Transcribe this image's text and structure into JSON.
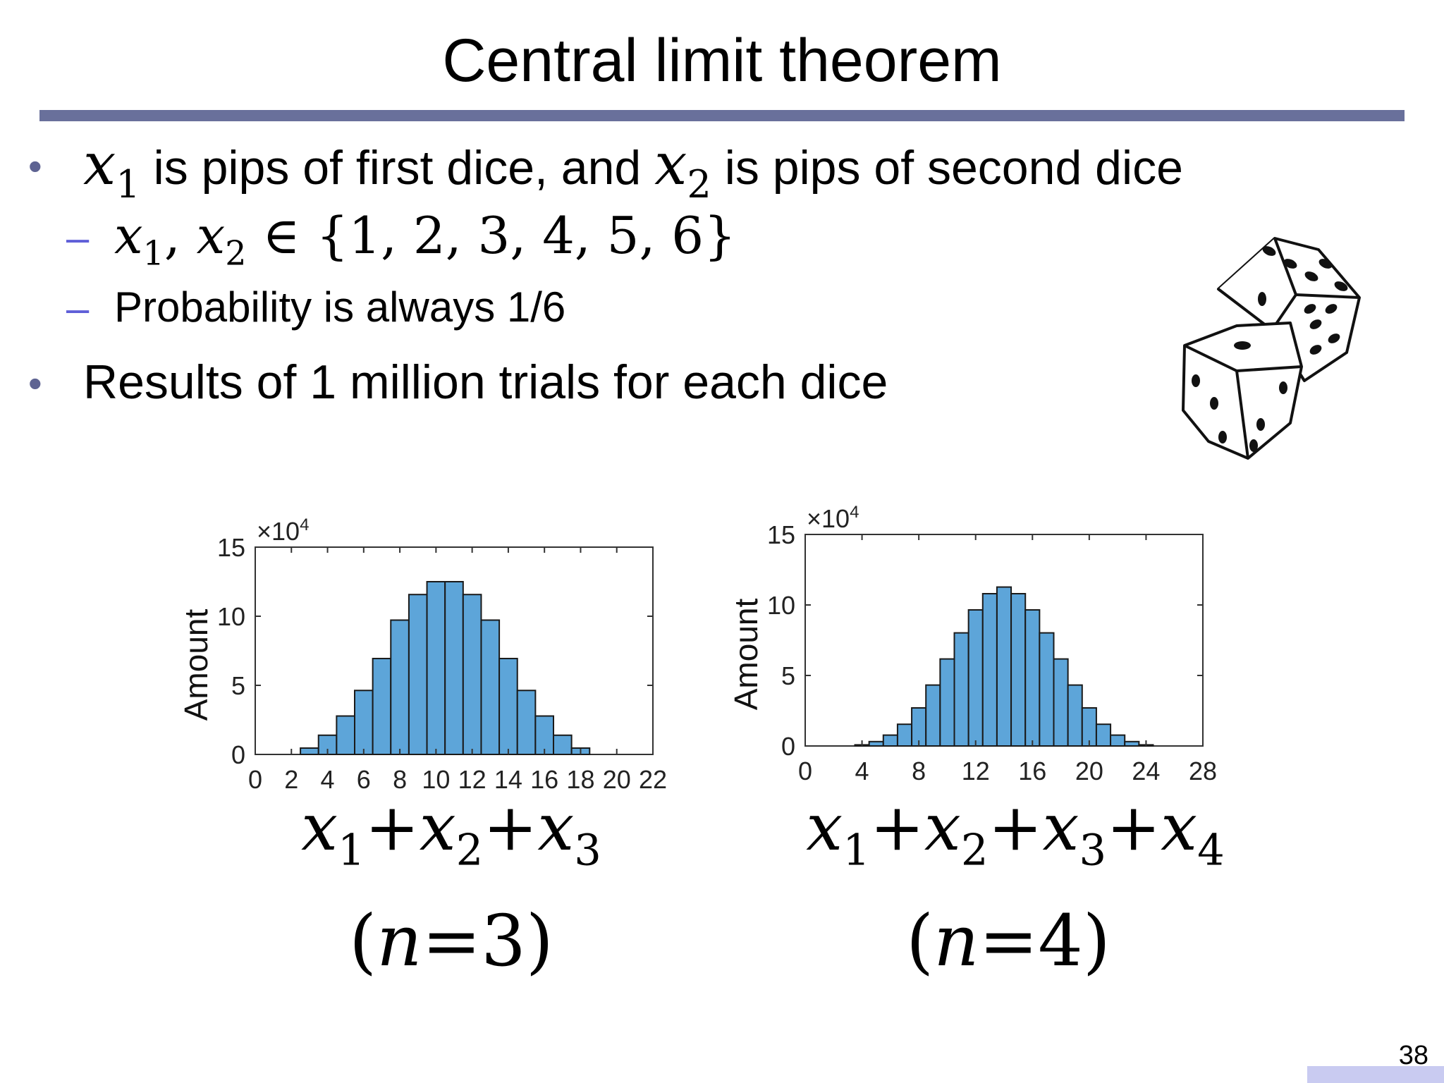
{
  "slide": {
    "title": "Central limit theorem",
    "page_number": "38"
  },
  "bullets": {
    "b1": {
      "var1": "x",
      "var1_sub": "1",
      "mid_text": "is pips of first dice, and",
      "var2": "x",
      "var2_sub": "2",
      "end_text": "is pips of second dice"
    },
    "sub1": {
      "var1": "x",
      "var1_sub": "1",
      "comma": ",",
      "var2": "x",
      "var2_sub": "2",
      "membership": "∈ {1, 2, 3, 4, 5, 6}"
    },
    "sub2": {
      "text": "Probability is always 1/6"
    },
    "b2": {
      "text": "Results of 1 million trials for each dice"
    }
  },
  "equations": {
    "left_sum": {
      "t1": "x",
      "s1": "1",
      "op1": "+",
      "t2": "x",
      "s2": "2",
      "op2": "+",
      "t3": "x",
      "s3": "3"
    },
    "left_n": {
      "open": "(",
      "var": "n",
      "eq": "=",
      "val": "3",
      "close": ")"
    },
    "right_sum": {
      "t1": "x",
      "s1": "1",
      "op1": "+",
      "t2": "x",
      "s2": "2",
      "op2": "+",
      "t3": "x",
      "s3": "3",
      "op3": "+",
      "t4": "x",
      "s4": "4"
    },
    "right_n": {
      "open": "(",
      "var": "n",
      "eq": "=",
      "val": "4",
      "close": ")"
    }
  },
  "icons": {
    "dice": "dice-icon"
  },
  "colors": {
    "bar_fill": "#5da5d9",
    "bar_stroke": "#1a1a1a",
    "rule": "#69709b",
    "dash": "#5f5fd8"
  },
  "chart_data": [
    {
      "type": "bar",
      "ylabel": "Amount",
      "yscale_label": "×10",
      "yscale_exp": "4",
      "x_ticks": [
        0,
        2,
        4,
        6,
        8,
        10,
        12,
        14,
        16,
        18,
        20,
        22
      ],
      "y_ticks": [
        0,
        5,
        10,
        15
      ],
      "xlim": [
        0,
        22
      ],
      "ylim": [
        0,
        15
      ],
      "x": [
        3,
        4,
        5,
        6,
        7,
        8,
        9,
        10,
        11,
        12,
        13,
        14,
        15,
        16,
        17,
        18
      ],
      "values": [
        0.46,
        1.39,
        2.78,
        4.63,
        6.94,
        9.72,
        11.57,
        12.5,
        12.5,
        11.57,
        9.72,
        6.94,
        4.63,
        2.78,
        1.39,
        0.46
      ],
      "bar_width": 1
    },
    {
      "type": "bar",
      "ylabel": "Amount",
      "yscale_label": "×10",
      "yscale_exp": "4",
      "x_ticks": [
        0,
        4,
        8,
        12,
        16,
        20,
        24,
        28
      ],
      "y_ticks": [
        0,
        5,
        10,
        15
      ],
      "xlim": [
        0,
        28
      ],
      "ylim": [
        0,
        15
      ],
      "x": [
        4,
        5,
        6,
        7,
        8,
        9,
        10,
        11,
        12,
        13,
        14,
        15,
        16,
        17,
        18,
        19,
        20,
        21,
        22,
        23,
        24
      ],
      "values": [
        0.08,
        0.31,
        0.77,
        1.54,
        2.7,
        4.32,
        6.17,
        8.02,
        9.65,
        10.8,
        11.27,
        10.8,
        9.65,
        8.02,
        6.17,
        4.32,
        2.7,
        1.54,
        0.77,
        0.31,
        0.08
      ],
      "bar_width": 1
    }
  ]
}
